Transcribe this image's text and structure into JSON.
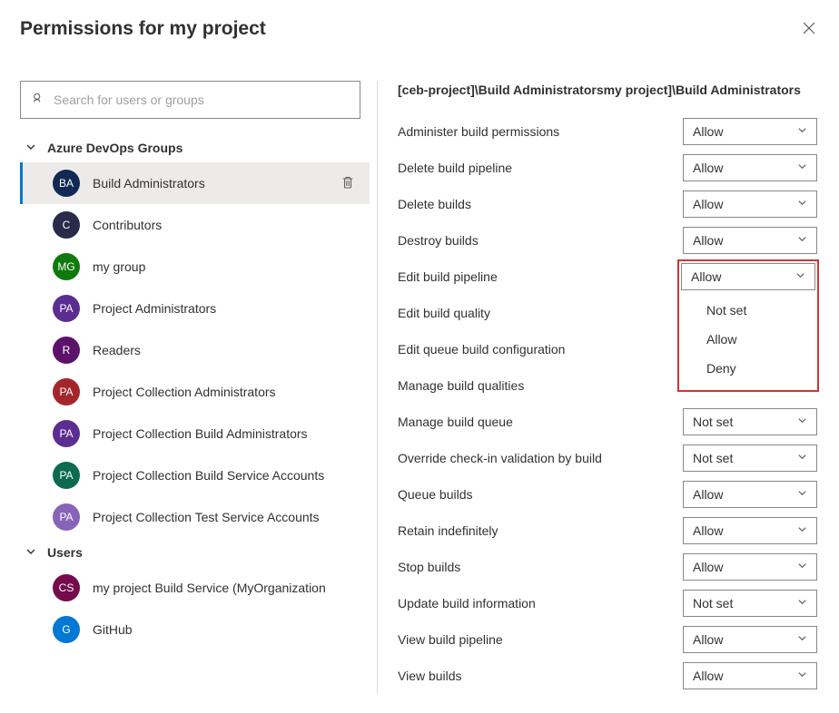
{
  "title": "Permissions for my project",
  "search": {
    "placeholder": "Search for users or groups"
  },
  "sections": {
    "groups": {
      "label": "Azure DevOps Groups",
      "items": [
        {
          "initials": "BA",
          "label": "Build Administrators",
          "color": "#102a55",
          "selected": true
        },
        {
          "initials": "C",
          "label": "Contributors",
          "color": "#2a2a4a"
        },
        {
          "initials": "MG",
          "label": "my group",
          "color": "#0e7a0d"
        },
        {
          "initials": "PA",
          "label": "Project Administrators",
          "color": "#5c2d91"
        },
        {
          "initials": "R",
          "label": "Readers",
          "color": "#5c126b"
        },
        {
          "initials": "PA",
          "label": "Project Collection Administrators",
          "color": "#a4262c"
        },
        {
          "initials": "PA",
          "label": "Project Collection Build Administrators",
          "color": "#5c2d91"
        },
        {
          "initials": "PA",
          "label": "Project Collection Build Service Accounts",
          "color": "#0b6a4f"
        },
        {
          "initials": "PA",
          "label": "Project Collection Test Service Accounts",
          "color": "#8764b8"
        }
      ]
    },
    "users": {
      "label": "Users",
      "items": [
        {
          "initials": "CS",
          "label": "my project Build Service (MyOrganization",
          "color": "#750b4c"
        },
        {
          "initials": "G",
          "label": "GitHub",
          "color": "#0078d4"
        }
      ]
    }
  },
  "breadcrumb": "[ceb-project]\\Build Administratorsmy project]\\Build Administrators",
  "dropdown_options": [
    "Not set",
    "Allow",
    "Deny"
  ],
  "permissions": [
    {
      "label": "Administer build permissions",
      "value": "Allow"
    },
    {
      "label": "Delete build pipeline",
      "value": "Allow"
    },
    {
      "label": "Delete builds",
      "value": "Allow"
    },
    {
      "label": "Destroy builds",
      "value": "Allow"
    },
    {
      "label": "Edit build pipeline",
      "value": "Allow",
      "open": true
    },
    {
      "label": "Edit build quality",
      "value": ""
    },
    {
      "label": "Edit queue build configuration",
      "value": ""
    },
    {
      "label": "Manage build qualities",
      "value": ""
    },
    {
      "label": "Manage build queue",
      "value": "Not set"
    },
    {
      "label": "Override check-in validation by build",
      "value": "Not set"
    },
    {
      "label": "Queue builds",
      "value": "Allow"
    },
    {
      "label": "Retain indefinitely",
      "value": "Allow"
    },
    {
      "label": "Stop builds",
      "value": "Allow"
    },
    {
      "label": "Update build information",
      "value": "Not set"
    },
    {
      "label": "View build pipeline",
      "value": "Allow"
    },
    {
      "label": "View builds",
      "value": "Allow"
    }
  ]
}
